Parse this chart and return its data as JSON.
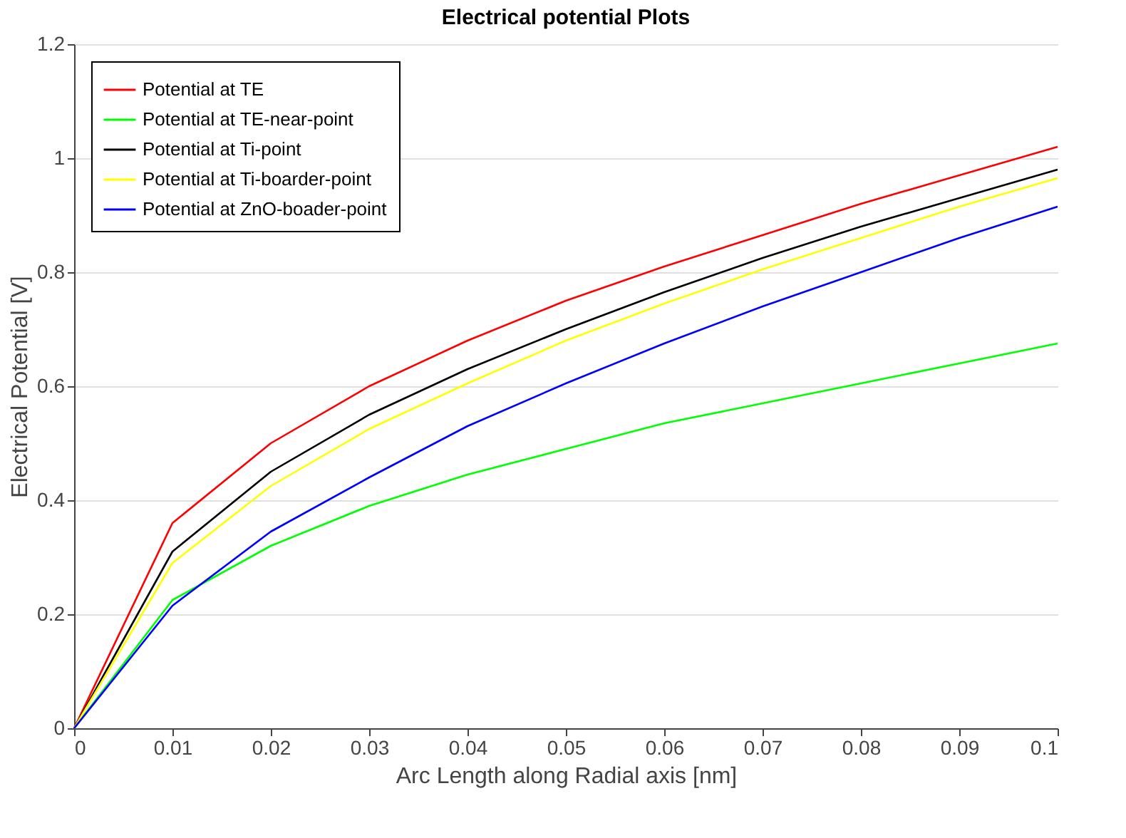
{
  "chart_data": {
    "type": "line",
    "title": "Electrical potential Plots",
    "xlabel": "Arc Length along Radial axis [nm]",
    "ylabel": "Electrical Potential [V]",
    "x": [
      0,
      0.01,
      0.02,
      0.03,
      0.04,
      0.05,
      0.06,
      0.07,
      0.08,
      0.09,
      0.1
    ],
    "series": [
      {
        "name": "Potential at TE",
        "color": "#ff0000",
        "values": [
          0,
          0.36,
          0.5,
          0.6,
          0.68,
          0.75,
          0.81,
          0.865,
          0.92,
          0.97,
          1.02
        ]
      },
      {
        "name": "Potential at TE-near-point",
        "color": "#00ff00",
        "values": [
          0,
          0.225,
          0.32,
          0.39,
          0.445,
          0.49,
          0.535,
          0.57,
          0.605,
          0.64,
          0.675
        ]
      },
      {
        "name": "Potential at Ti-point",
        "color": "#000000",
        "values": [
          0,
          0.31,
          0.45,
          0.55,
          0.63,
          0.7,
          0.765,
          0.825,
          0.88,
          0.93,
          0.98
        ]
      },
      {
        "name": "Potential at Ti-boarder-point",
        "color": "#ffff00",
        "values": [
          0,
          0.29,
          0.425,
          0.525,
          0.605,
          0.68,
          0.745,
          0.805,
          0.86,
          0.915,
          0.965
        ]
      },
      {
        "name": "Potential at ZnO-boader-point",
        "color": "#0000ff",
        "values": [
          0,
          0.215,
          0.345,
          0.44,
          0.53,
          0.605,
          0.675,
          0.74,
          0.8,
          0.86,
          0.915
        ]
      }
    ],
    "xlim": [
      0,
      0.1
    ],
    "ylim": [
      0,
      1.2
    ],
    "xticks": [
      0,
      0.01,
      0.02,
      0.03,
      0.04,
      0.05,
      0.06,
      0.07,
      0.08,
      0.09,
      0.1
    ],
    "yticks": [
      0,
      0.2,
      0.4,
      0.6,
      0.8,
      1,
      1.2
    ],
    "grid": "y",
    "legend": "top left",
    "marker": "none",
    "line_style": "solid"
  }
}
